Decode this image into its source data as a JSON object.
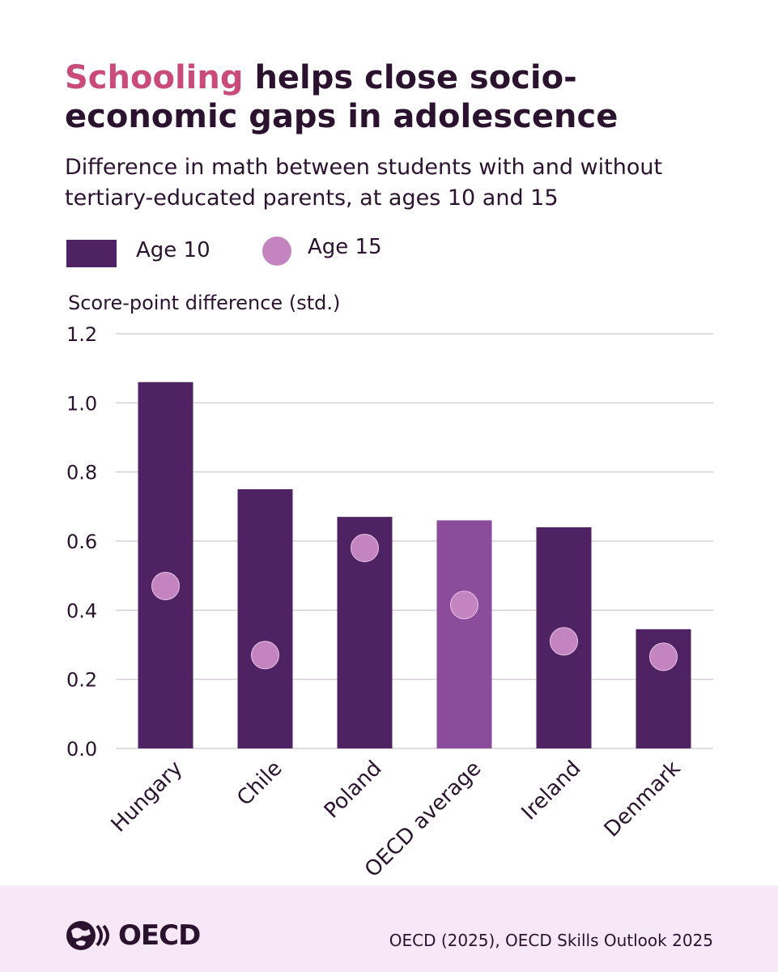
{
  "title": {
    "accent": "Schooling",
    "rest": "helps close socio-economic gaps in adolescence"
  },
  "subtitle": "Difference in math between students with and without tertiary-educated parents, at ages 10 and 15",
  "legend": {
    "age10": "Age 10",
    "age15": "Age 15"
  },
  "colors": {
    "bar": "#4f2363",
    "bar_highlight": "#8a4c9b",
    "dot": "#c484c0",
    "grid": "#d6d0d8",
    "footer_bg": "#f6e8f7",
    "accent": "#c94b7a"
  },
  "chart_data": {
    "type": "bar",
    "ylabel": "Score-point difference (std.)",
    "ylim": [
      0,
      1.2
    ],
    "yticks": [
      "0.0",
      "0.2",
      "0.4",
      "0.6",
      "0.8",
      "1.0",
      "1.2"
    ],
    "categories": [
      "Hungary",
      "Chile",
      "Poland",
      "OECD average",
      "Ireland",
      "Denmark"
    ],
    "highlight": "OECD average",
    "grid": true,
    "legend_position": "top-left",
    "series": [
      {
        "name": "Age 10",
        "kind": "bar",
        "values": [
          1.06,
          0.75,
          0.67,
          0.66,
          0.64,
          0.345
        ]
      },
      {
        "name": "Age 15",
        "kind": "dot",
        "values": [
          0.47,
          0.27,
          0.58,
          0.415,
          0.31,
          0.265
        ]
      }
    ]
  },
  "footer": {
    "logo_text": "OECD",
    "source": "OECD (2025), OECD Skills Outlook 2025"
  }
}
